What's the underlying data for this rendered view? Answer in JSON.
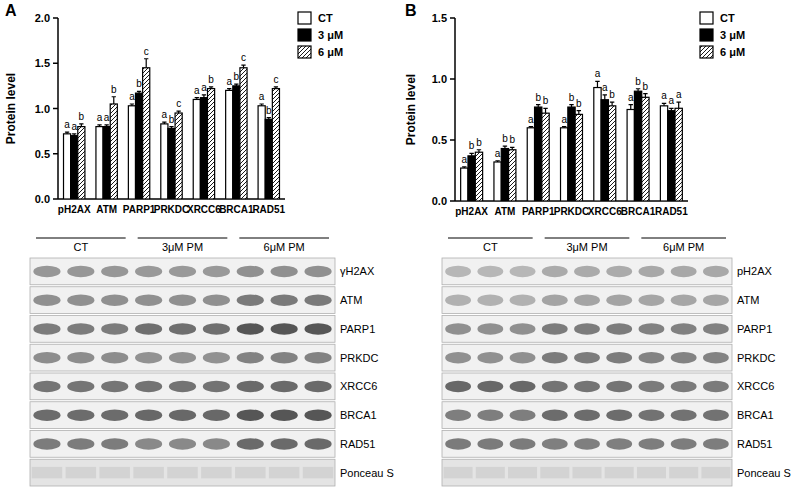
{
  "chart_data": [
    {
      "type": "bar",
      "y_label": "Protein level",
      "categories": [
        "pH2AX",
        "ATM",
        "PARP1",
        "PRKDC",
        "XRCC6",
        "BRCA1",
        "RAD51"
      ],
      "ylim": [
        0,
        2
      ],
      "yticks": [
        {
          "value": 0,
          "label": "0.0"
        },
        {
          "value": 0.5,
          "label": "0.5"
        },
        {
          "value": 1,
          "label": "1.0"
        },
        {
          "value": 1.5,
          "label": "1.5"
        },
        {
          "value": 2,
          "label": "2.0"
        }
      ],
      "legend": "right",
      "series": [
        {
          "name": "CT",
          "color": "#ffffff",
          "marker": "none",
          "values": [
            0.72,
            0.8,
            1.03,
            0.83,
            1.1,
            1.2,
            1.03
          ],
          "errors": [
            0.02,
            0.02,
            0.02,
            0.02,
            0.02,
            0.02,
            0.02
          ],
          "letters": [
            "a",
            "a",
            "a",
            "a",
            "a",
            "a",
            "a"
          ]
        },
        {
          "name": "3 μM",
          "color": "#000000",
          "marker": "none",
          "values": [
            0.7,
            0.8,
            1.17,
            0.78,
            1.12,
            1.25,
            0.88
          ],
          "errors": [
            0.02,
            0.02,
            0.02,
            0.02,
            0.03,
            0.02,
            0.02
          ],
          "letters": [
            "a",
            "a",
            "b",
            "b",
            "a",
            "b",
            "b"
          ]
        },
        {
          "name": "6 μM",
          "color": "#ffffff",
          "marker": "hatch",
          "values": [
            0.8,
            1.05,
            1.45,
            0.95,
            1.22,
            1.45,
            1.22
          ],
          "errors": [
            0.03,
            0.08,
            0.1,
            0.02,
            0.02,
            0.03,
            0.02
          ],
          "letters": [
            "b",
            "b",
            "c",
            "c",
            "b",
            "c",
            "c"
          ]
        }
      ]
    },
    {
      "type": "bar",
      "y_label": "Protein level",
      "categories": [
        "pH2AX",
        "ATM",
        "PARP1",
        "PRKDC",
        "XRCC6",
        "BRCA1",
        "RAD51"
      ],
      "ylim": [
        0,
        1.5
      ],
      "yticks": [
        {
          "value": 0,
          "label": "0.0"
        },
        {
          "value": 0.5,
          "label": "0.5"
        },
        {
          "value": 1,
          "label": "1.0"
        },
        {
          "value": 1.5,
          "label": "1.5"
        }
      ],
      "legend": "right",
      "series": [
        {
          "name": "CT",
          "color": "#ffffff",
          "marker": "none",
          "values": [
            0.27,
            0.32,
            0.6,
            0.6,
            0.93,
            0.75,
            0.78
          ],
          "errors": [
            0.01,
            0.01,
            0.01,
            0.01,
            0.05,
            0.04,
            0.02
          ],
          "letters": [
            "a",
            "a",
            "a",
            "a",
            "a",
            "a",
            "a"
          ]
        },
        {
          "name": "3 μM",
          "color": "#000000",
          "marker": "none",
          "values": [
            0.37,
            0.43,
            0.77,
            0.77,
            0.83,
            0.9,
            0.74
          ],
          "errors": [
            0.02,
            0.02,
            0.02,
            0.02,
            0.04,
            0.02,
            0.02
          ],
          "letters": [
            "b",
            "b",
            "b",
            "b",
            "a",
            "b",
            "a"
          ]
        },
        {
          "name": "6 μM",
          "color": "#ffffff",
          "marker": "hatch",
          "values": [
            0.4,
            0.42,
            0.72,
            0.71,
            0.78,
            0.85,
            0.76
          ],
          "errors": [
            0.02,
            0.02,
            0.04,
            0.03,
            0.03,
            0.03,
            0.05
          ],
          "letters": [
            "b",
            "b",
            "b",
            "b",
            "b",
            "b",
            "a"
          ]
        }
      ]
    }
  ],
  "panels": [
    {
      "label": "A",
      "blot": {
        "groups": [
          "CT",
          "3μM PM",
          "6μM PM"
        ],
        "rows": [
          "γH2AX",
          "ATM",
          "PARP1",
          "PRKDC",
          "XRCC6",
          "BRCA1",
          "RAD51",
          "Ponceau S"
        ]
      }
    },
    {
      "label": "B",
      "blot": {
        "groups": [
          "CT",
          "3μM PM",
          "6μM PM"
        ],
        "rows": [
          "pH2AX",
          "ATM",
          "PARP1",
          "PRKDC",
          "XRCC6",
          "BRCA1",
          "RAD51",
          "Ponceau S"
        ]
      }
    }
  ]
}
